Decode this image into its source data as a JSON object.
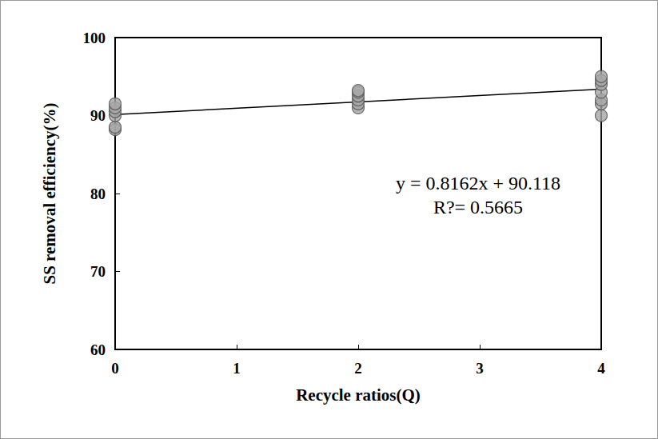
{
  "chart_data": {
    "type": "scatter",
    "x_label": "Recycle ratios(Q)",
    "y_label": "SS removal efficiency(%)",
    "x": [
      0,
      0,
      0,
      0,
      0,
      0,
      2,
      2,
      2,
      2,
      2,
      2,
      4,
      4,
      4,
      4,
      4,
      4,
      4
    ],
    "values": [
      88.2,
      88.5,
      90.0,
      90.5,
      91.0,
      91.5,
      91.0,
      91.5,
      92.0,
      92.5,
      93.0,
      93.2,
      90.0,
      91.5,
      92.0,
      93.0,
      94.0,
      94.5,
      95.0
    ],
    "color": "#a6a6a6",
    "marker": "circle",
    "xlim": [
      0,
      4
    ],
    "xticks": [
      0,
      1,
      2,
      3,
      4
    ],
    "ylim": [
      60,
      100
    ],
    "yticks": [
      60,
      70,
      80,
      90,
      100
    ],
    "grid": false,
    "trendline": {
      "slope": 0.8162,
      "intercept": 90.118
    },
    "annotations": [
      "y = 0.8162x + 90.118",
      "R?= 0.5665"
    ]
  }
}
